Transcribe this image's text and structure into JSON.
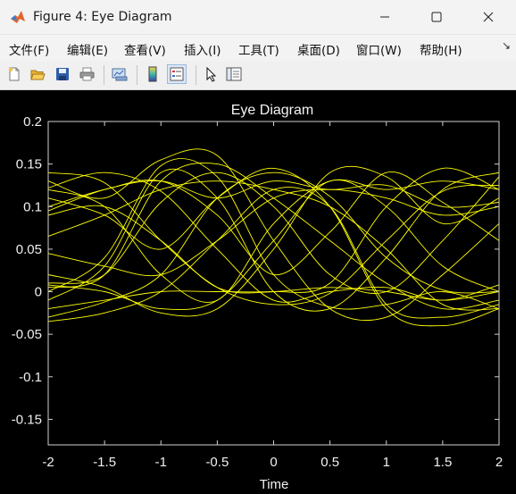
{
  "window": {
    "title": "Figure 4: Eye Diagram"
  },
  "menu": {
    "items": [
      "文件(F)",
      "编辑(E)",
      "查看(V)",
      "插入(I)",
      "工具(T)",
      "桌面(D)",
      "窗口(W)",
      "帮助(H)"
    ],
    "overflow": "↘"
  },
  "toolbar": {
    "buttons": [
      "new-figure-icon",
      "open-file-icon",
      "save-icon",
      "print-icon",
      "link-plot-icon",
      "insert-colorbar-icon",
      "insert-legend-icon",
      "edit-plot-pointer-icon",
      "property-inspector-icon"
    ]
  },
  "colors": {
    "trace": "#ffff00",
    "axes": "#cfcfcf",
    "background": "#000000"
  },
  "chart_data": {
    "type": "line",
    "title": "Eye Diagram",
    "xlabel": "Time",
    "ylabel": "",
    "xlim": [
      -2,
      2
    ],
    "ylim": [
      -0.18,
      0.2
    ],
    "xticks": [
      "-2",
      "-1.5",
      "-1",
      "-0.5",
      "0",
      "0.5",
      "1",
      "1.5",
      "2"
    ],
    "yticks": [
      "0.2",
      "0.15",
      "0.1",
      "0.05",
      "0",
      "-0.05",
      "-0.1",
      "-0.15"
    ],
    "xtick_values": [
      -2,
      -1.5,
      -1,
      -0.5,
      0,
      0.5,
      1,
      1.5,
      2
    ],
    "ytick_values": [
      0.2,
      0.15,
      0.1,
      0.05,
      0,
      -0.05,
      -0.1,
      -0.15
    ],
    "grid": false,
    "traces": [
      [
        0.14,
        0.128,
        0.06,
        0.005,
        -0.015,
        -0.002,
        0.06,
        0.118,
        0.125
      ],
      [
        0.13,
        0.11,
        0.155,
        0.16,
        0.06,
        -0.02,
        -0.03,
        0.02,
        0.08
      ],
      [
        0.005,
        0.02,
        0.13,
        0.15,
        0.11,
        0.06,
        0.01,
        -0.02,
        -0.01
      ],
      [
        -0.01,
        0.03,
        0.14,
        0.11,
        0.0,
        -0.02,
        0.04,
        0.12,
        0.14
      ],
      [
        0.095,
        0.12,
        0.13,
        0.11,
        0.13,
        0.12,
        0.125,
        0.1,
        0.105
      ],
      [
        0.09,
        0.1,
        0.06,
        0.005,
        0.0,
        0.01,
        0.1,
        0.145,
        0.12
      ],
      [
        0.0,
        0.04,
        0.148,
        0.135,
        0.02,
        -0.018,
        -0.015,
        0.0,
        -0.02
      ],
      [
        0.122,
        0.14,
        0.118,
        0.05,
        -0.01,
        0.0,
        0.005,
        -0.01,
        0.008
      ],
      [
        -0.02,
        -0.01,
        0.0,
        0.0,
        0.0,
        0.005,
        0.0,
        -0.01,
        0.0
      ],
      [
        0.065,
        0.09,
        0.12,
        0.13,
        0.12,
        0.1,
        0.05,
        -0.015,
        -0.02
      ],
      [
        0.01,
        0.02,
        0.105,
        0.14,
        0.1,
        0.02,
        0.0,
        0.06,
        0.135
      ],
      [
        -0.03,
        -0.012,
        0.02,
        0.11,
        0.14,
        0.112,
        0.04,
        0.002,
        0.0
      ],
      [
        0.1,
        0.12,
        0.13,
        0.09,
        0.02,
        0.07,
        0.14,
        0.105,
        0.06
      ],
      [
        -0.035,
        -0.025,
        0.0,
        0.06,
        0.12,
        0.1,
        -0.015,
        -0.03,
        -0.015
      ],
      [
        0.008,
        0.0,
        -0.02,
        -0.01,
        0.06,
        0.13,
        0.1,
        0.03,
        0.0
      ],
      [
        0.045,
        0.03,
        0.02,
        0.06,
        0.11,
        0.12,
        0.11,
        0.09,
        0.1
      ],
      [
        0.11,
        0.09,
        0.05,
        0.11,
        0.145,
        0.1,
        -0.02,
        -0.04,
        -0.02
      ],
      [
        0.02,
        0.005,
        -0.025,
        -0.02,
        0.05,
        0.14,
        0.135,
        0.08,
        0.11
      ],
      [
        0.12,
        0.1,
        0.02,
        -0.01,
        0.08,
        0.13,
        0.12,
        0.13,
        0.12
      ]
    ]
  }
}
